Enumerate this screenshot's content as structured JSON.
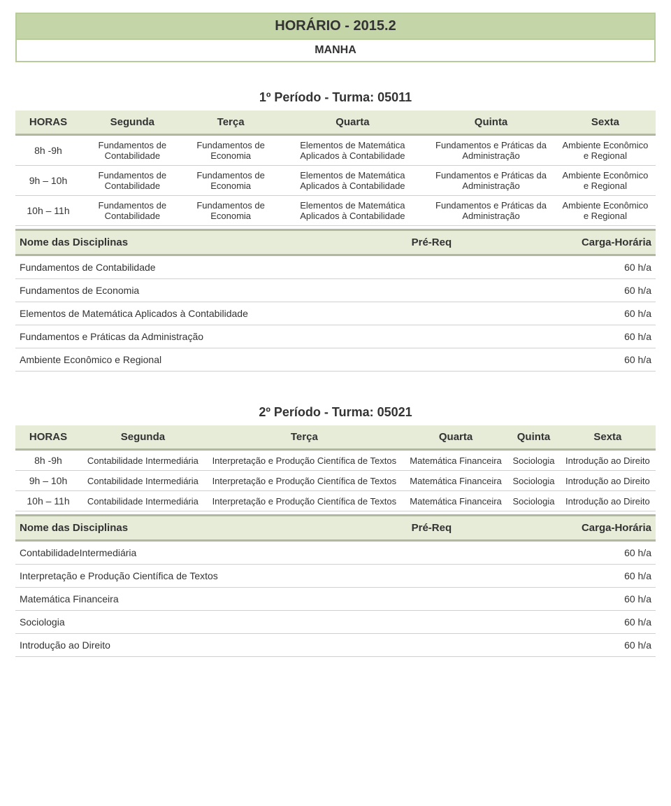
{
  "header": {
    "title": "HORÁRIO - 2015.2",
    "subtitle": "MANHA"
  },
  "columns_label": {
    "horas": "HORAS",
    "segunda": "Segunda",
    "terca": "Terça",
    "quarta": "Quarta",
    "quinta": "Quinta",
    "sexta": "Sexta"
  },
  "disc_header": {
    "name": "Nome das Disciplinas",
    "pre": "Pré-Req",
    "load": "Carga-Horária"
  },
  "period1": {
    "title": "1º Período - Turma: 05011",
    "rows": [
      {
        "hours": "8h -9h",
        "segunda": "Fundamentos de Contabilidade",
        "terca": "Fundamentos de Economia",
        "quarta": "Elementos de Matemática Aplicados à Contabilidade",
        "quinta": "Fundamentos e Práticas da Administração",
        "sexta": "Ambiente Econômico e Regional"
      },
      {
        "hours": "9h – 10h",
        "segunda": "Fundamentos de Contabilidade",
        "terca": "Fundamentos de Economia",
        "quarta": "Elementos de Matemática Aplicados à Contabilidade",
        "quinta": "Fundamentos e Práticas da Administração",
        "sexta": "Ambiente Econômico e Regional"
      },
      {
        "hours": "10h – 11h",
        "segunda": "Fundamentos de Contabilidade",
        "terca": "Fundamentos de Economia",
        "quarta": "Elementos de Matemática Aplicados à Contabilidade",
        "quinta": "Fundamentos e Práticas da Administração",
        "sexta": "Ambiente Econômico e Regional"
      }
    ],
    "disciplines": [
      {
        "name": "Fundamentos de Contabilidade",
        "pre": "",
        "load": "60 h/a"
      },
      {
        "name": "Fundamentos de Economia",
        "pre": "",
        "load": "60 h/a"
      },
      {
        "name": "Elementos de Matemática Aplicados à Contabilidade",
        "pre": "",
        "load": "60 h/a"
      },
      {
        "name": "Fundamentos e Práticas da Administração",
        "pre": "",
        "load": "60 h/a"
      },
      {
        "name": "Ambiente Econômico e Regional",
        "pre": "",
        "load": "60 h/a"
      }
    ]
  },
  "period2": {
    "title": "2º Período - Turma: 05021",
    "rows": [
      {
        "hours": "8h -9h",
        "segunda": "Contabilidade Intermediária",
        "terca": "Interpretação e Produção Científica de Textos",
        "quarta": "Matemática Financeira",
        "quinta": "Sociologia",
        "sexta": "Introdução ao Direito"
      },
      {
        "hours": "9h – 10h",
        "segunda": "Contabilidade Intermediária",
        "terca": "Interpretação e Produção Científica de Textos",
        "quarta": "Matemática Financeira",
        "quinta": "Sociologia",
        "sexta": "Introdução ao Direito"
      },
      {
        "hours": "10h – 11h",
        "segunda": "Contabilidade Intermediária",
        "terca": "Interpretação e Produção Científica de Textos",
        "quarta": "Matemática Financeira",
        "quinta": "Sociologia",
        "sexta": "Introdução ao Direito"
      }
    ],
    "disciplines": [
      {
        "name": "ContabilidadeIntermediária",
        "pre": "",
        "load": "60 h/a"
      },
      {
        "name": "Interpretação e Produção Científica de Textos",
        "pre": "",
        "load": "60 h/a"
      },
      {
        "name": "Matemática Financeira",
        "pre": "",
        "load": "60 h/a"
      },
      {
        "name": "Sociologia",
        "pre": "",
        "load": "60 h/a"
      },
      {
        "name": "Introdução ao Direito",
        "pre": "",
        "load": "60 h/a"
      }
    ]
  }
}
